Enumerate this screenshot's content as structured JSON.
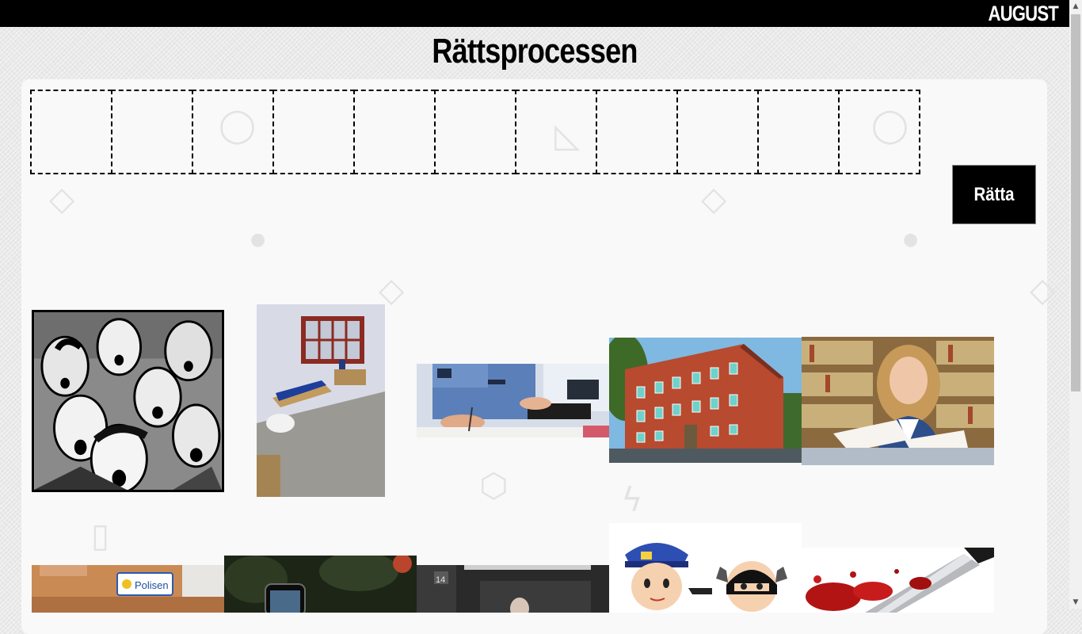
{
  "header": {
    "brand": "AUGUST"
  },
  "page": {
    "title": "Rättsprocessen"
  },
  "drop_zone": {
    "slot_count": 11
  },
  "check_button": {
    "label": "Rätta"
  },
  "cards": [
    {
      "name": "scared-crowd-comic",
      "alt": "Scared crowd"
    },
    {
      "name": "prison-cell",
      "alt": "Prison cell"
    },
    {
      "name": "police-writing-report",
      "alt": "Police officer writing report"
    },
    {
      "name": "brick-apartment-building",
      "alt": "Brick building"
    },
    {
      "name": "lawyer-reading-book",
      "alt": "Lawyer reading"
    },
    {
      "name": "police-station",
      "sign": "Polisen"
    },
    {
      "name": "mobile-phone",
      "alt": "Mobile phone"
    },
    {
      "name": "courtroom",
      "number": "14"
    },
    {
      "name": "police-arrest-cartoon",
      "alt": "Police arrest cartoon"
    },
    {
      "name": "bloody-knife",
      "alt": "Bloody knife"
    }
  ],
  "colors": {
    "topbar": "#000000",
    "panel": "#f9f9f9",
    "button": "#000000"
  }
}
